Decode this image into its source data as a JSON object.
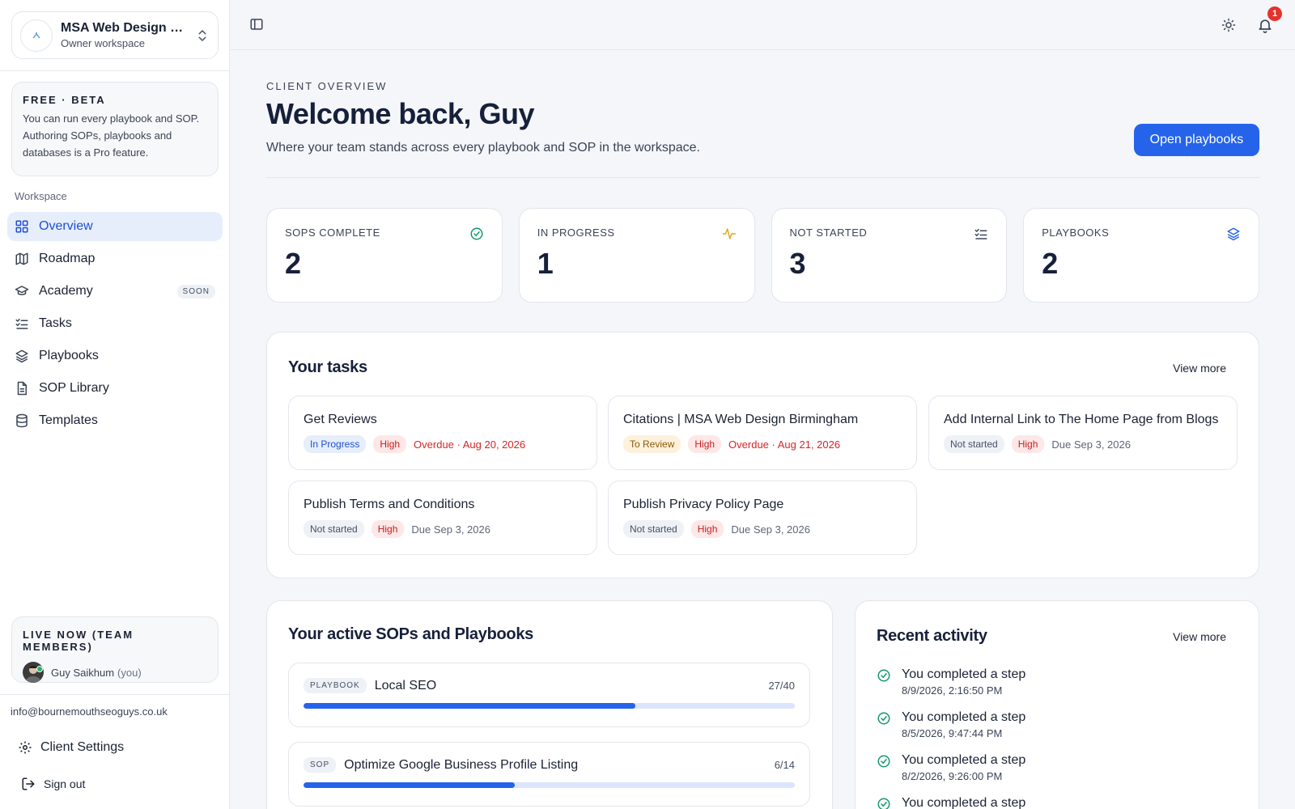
{
  "workspace": {
    "name": "MSA Web Design Birmingham",
    "subtitle": "Owner workspace"
  },
  "beta": {
    "title": "FREE · BETA",
    "text": "You can run every playbook and SOP. Authoring SOPs, playbooks and databases is a Pro feature."
  },
  "nav": {
    "section": "Workspace",
    "items": [
      {
        "label": "Overview",
        "icon": "grid-icon",
        "active": true
      },
      {
        "label": "Roadmap",
        "icon": "map-icon"
      },
      {
        "label": "Academy",
        "icon": "graduation-cap-icon",
        "badge": "SOON"
      },
      {
        "label": "Tasks",
        "icon": "checklist-icon"
      },
      {
        "label": "Playbooks",
        "icon": "layers-icon"
      },
      {
        "label": "SOP Library",
        "icon": "document-icon"
      },
      {
        "label": "Templates",
        "icon": "database-icon"
      }
    ]
  },
  "live": {
    "title": "LIVE NOW (TEAM MEMBERS)",
    "user": "Guy Saikhum",
    "you": "(you)"
  },
  "account": {
    "email": "info@bournemouthseoguys.co.uk",
    "settings": "Client Settings",
    "signout": "Sign out"
  },
  "topbar": {
    "notification_count": "1"
  },
  "header": {
    "eyebrow": "CLIENT OVERVIEW",
    "title": "Welcome back, Guy",
    "subtitle": "Where your team stands across every playbook and SOP in the workspace.",
    "button": "Open playbooks"
  },
  "stats": [
    {
      "label": "SOPS COMPLETE",
      "value": "2",
      "icon": "check-circle-icon",
      "color": "#12996a"
    },
    {
      "label": "IN PROGRESS",
      "value": "1",
      "icon": "activity-icon",
      "color": "#e0a81a"
    },
    {
      "label": "NOT STARTED",
      "value": "3",
      "icon": "checklist-icon",
      "color": "#3b4456"
    },
    {
      "label": "PLAYBOOKS",
      "value": "2",
      "icon": "layers-icon",
      "color": "#2563eb"
    }
  ],
  "tasks": {
    "title": "Your tasks",
    "view_more": "View more",
    "items": [
      {
        "title": "Get Reviews",
        "status": "In Progress",
        "priority": "High",
        "due": "Overdue · Aug 20, 2026"
      },
      {
        "title": "Citations | MSA Web Design Birmingham",
        "status": "To Review",
        "priority": "High",
        "due": "Overdue · Aug 21, 2026"
      },
      {
        "title": "Add Internal Link to The Home Page from Blogs",
        "status": "Not started",
        "priority": "High",
        "due": "Due Sep 3, 2026"
      },
      {
        "title": "Publish Terms and Conditions",
        "status": "Not started",
        "priority": "High",
        "due": "Due Sep 3, 2026"
      },
      {
        "title": "Publish Privacy Policy Page",
        "status": "Not started",
        "priority": "High",
        "due": "Due Sep 3, 2026"
      }
    ]
  },
  "sops": {
    "title": "Your active SOPs and Playbooks",
    "items": [
      {
        "type": "PLAYBOOK",
        "name": "Local SEO",
        "count": "27/40",
        "progress": 0.675
      },
      {
        "type": "SOP",
        "name": "Optimize Google Business Profile Listing",
        "count": "6/14",
        "progress": 0.43
      }
    ]
  },
  "activity": {
    "title": "Recent activity",
    "view_more": "View more",
    "items": [
      {
        "title": "You completed a step",
        "time": "8/9/2026, 2:16:50 PM"
      },
      {
        "title": "You completed a step",
        "time": "8/5/2026, 9:47:44 PM"
      },
      {
        "title": "You completed a step",
        "time": "8/2/2026, 9:26:00 PM"
      },
      {
        "title": "You completed a step",
        "time": ""
      }
    ]
  }
}
